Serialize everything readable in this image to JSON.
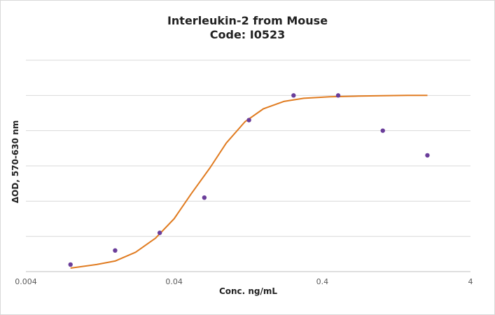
{
  "chart_data": {
    "type": "scatter",
    "title": "Interleukin-2 from Mouse",
    "subtitle": "Code: I0523",
    "xlabel": "Conc. ng/mL",
    "ylabel": "ΔOD, 570-630 nm",
    "x_scale": "log",
    "xlim": [
      0.004,
      4
    ],
    "ylim": [
      0,
      6
    ],
    "x_ticks": [
      "0.004",
      "0.04",
      "0.4",
      "4"
    ],
    "grid": true,
    "legend": "none",
    "colors": {
      "points": "#6a3d9a",
      "fit": "#e07b20",
      "grid": "#d9d9d9",
      "axis": "#bfbfbf"
    },
    "series": [
      {
        "kind": "points",
        "x": [
          0.008,
          0.016,
          0.032,
          0.064,
          0.128,
          0.256,
          0.512,
          1.024,
          2.048
        ],
        "y": [
          0.2,
          0.6,
          1.1,
          2.1,
          4.3,
          5.0,
          5.0,
          4.0,
          3.3
        ]
      },
      {
        "kind": "fit",
        "x": [
          0.008,
          0.012,
          0.016,
          0.022,
          0.03,
          0.04,
          0.052,
          0.07,
          0.09,
          0.12,
          0.16,
          0.22,
          0.3,
          0.45,
          0.7,
          1.0,
          1.5,
          2.048
        ],
        "y": [
          0.1,
          0.2,
          0.3,
          0.55,
          0.95,
          1.5,
          2.2,
          2.95,
          3.65,
          4.25,
          4.62,
          4.83,
          4.92,
          4.96,
          4.98,
          4.99,
          5.0,
          5.0
        ]
      }
    ]
  }
}
